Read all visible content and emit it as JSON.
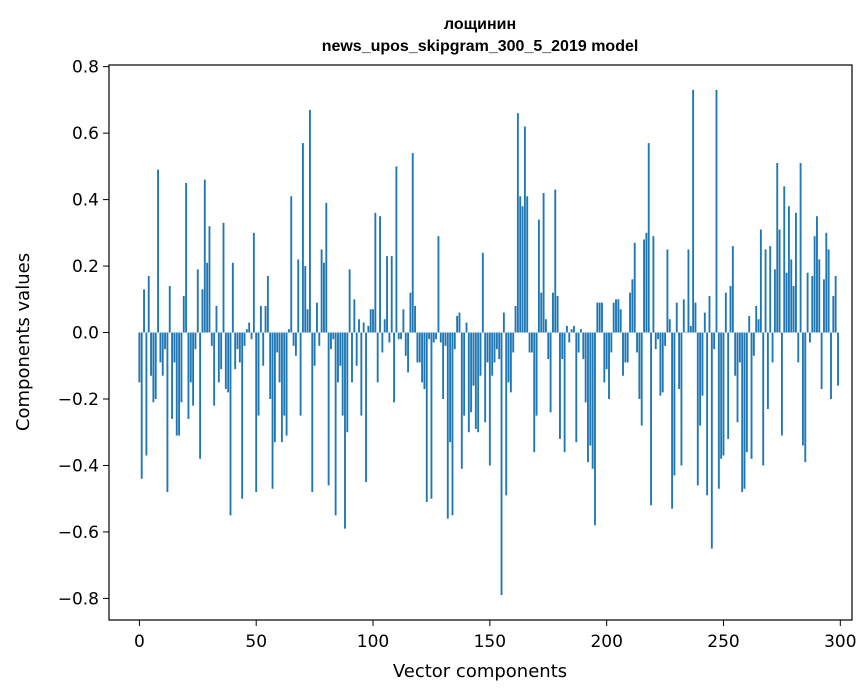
{
  "chart_data": {
    "type": "bar",
    "title_lines": [
      "лощинин",
      "news_upos_skipgram_300_5_2019 model"
    ],
    "xlabel": "Vector components",
    "ylabel": "Components values",
    "xlim": [
      -13,
      305
    ],
    "ylim": [
      -0.865,
      0.805
    ],
    "xticks": [
      0,
      50,
      100,
      150,
      200,
      250,
      300
    ],
    "yticks": [
      -0.8,
      -0.6,
      -0.4,
      -0.2,
      0.0,
      0.2,
      0.4,
      0.6,
      0.8
    ],
    "xtick_labels": [
      "0",
      "50",
      "100",
      "150",
      "200",
      "250",
      "300"
    ],
    "ytick_labels": [
      "−0.8",
      "−0.6",
      "−0.4",
      "−0.2",
      "0.0",
      "0.2",
      "0.4",
      "0.6",
      "0.8"
    ],
    "bar_color": "#1f77b4",
    "grid": false,
    "legend": "none",
    "x_start": 0,
    "values": [
      -0.15,
      -0.44,
      0.13,
      -0.37,
      0.17,
      -0.13,
      -0.21,
      -0.2,
      0.49,
      -0.09,
      -0.13,
      -0.05,
      -0.48,
      0.14,
      -0.26,
      -0.09,
      -0.31,
      -0.31,
      -0.21,
      0.11,
      0.45,
      -0.26,
      -0.15,
      -0.22,
      -0.05,
      0.19,
      -0.38,
      0.13,
      0.46,
      0.21,
      0.32,
      -0.04,
      -0.22,
      0.08,
      -0.15,
      -0.11,
      0.33,
      -0.17,
      -0.18,
      -0.55,
      0.21,
      -0.11,
      -0.05,
      -0.09,
      -0.5,
      -0.04,
      0.01,
      0.03,
      -0.02,
      0.3,
      -0.48,
      -0.25,
      0.08,
      -0.1,
      0.08,
      0.17,
      -0.2,
      -0.47,
      -0.33,
      -0.06,
      -0.15,
      -0.33,
      -0.25,
      -0.31,
      0.01,
      0.41,
      -0.04,
      -0.07,
      0.22,
      -0.25,
      0.57,
      0.2,
      0.07,
      0.67,
      -0.48,
      -0.1,
      0.09,
      -0.04,
      0.25,
      0.21,
      0.39,
      -0.46,
      -0.05,
      -0.02,
      -0.55,
      -0.15,
      -0.1,
      -0.25,
      -0.59,
      -0.3,
      0.19,
      -0.15,
      0.1,
      -0.1,
      0.04,
      -0.25,
      0.03,
      -0.45,
      0.02,
      0.07,
      0.07,
      0.36,
      -0.15,
      0.35,
      -0.06,
      0.04,
      0.23,
      -0.03,
      0.23,
      -0.21,
      0.5,
      -0.02,
      -0.02,
      0.07,
      -0.07,
      -0.12,
      0.12,
      0.54,
      0.08,
      -0.09,
      -0.09,
      -0.15,
      -0.17,
      -0.51,
      -0.02,
      -0.5,
      -0.03,
      -0.02,
      0.29,
      -0.03,
      -0.2,
      -0.04,
      -0.56,
      -0.33,
      -0.55,
      -0.05,
      0.05,
      0.06,
      -0.41,
      -0.25,
      0.03,
      -0.3,
      -0.24,
      -0.16,
      -0.29,
      -0.3,
      -0.13,
      0.24,
      -0.27,
      -0.09,
      -0.4,
      -0.13,
      -0.09,
      -0.05,
      -0.08,
      -0.79,
      0.06,
      -0.49,
      -0.15,
      -0.18,
      -0.06,
      0.08,
      0.66,
      0.41,
      0.38,
      0.62,
      0.41,
      -0.06,
      -0.06,
      -0.36,
      -0.25,
      0.34,
      0.12,
      0.42,
      0.04,
      -0.08,
      -0.24,
      0.12,
      0.43,
      0.11,
      -0.32,
      -0.08,
      -0.36,
      0.02,
      -0.03,
      0.01,
      0.02,
      -0.33,
      -0.06,
      0.01,
      -0.08,
      -0.21,
      -0.39,
      -0.34,
      -0.41,
      -0.58,
      0.09,
      0.09,
      0.09,
      -0.15,
      -0.11,
      -0.2,
      -0.06,
      0.09,
      0.1,
      0.1,
      0.07,
      -0.13,
      -0.09,
      -0.09,
      0.12,
      0.16,
      0.27,
      -0.06,
      -0.2,
      -0.28,
      0.28,
      0.3,
      0.57,
      -0.52,
      0.29,
      -0.05,
      -0.02,
      -0.19,
      -0.18,
      -0.04,
      0.25,
      0.04,
      -0.53,
      -0.43,
      0.09,
      -0.17,
      -0.4,
      0.1,
      0.0,
      0.25,
      0.02,
      0.73,
      0.09,
      -0.46,
      -0.28,
      -0.19,
      0.06,
      -0.49,
      0.11,
      -0.65,
      -0.05,
      0.73,
      -0.47,
      -0.38,
      -0.37,
      0.12,
      -0.32,
      0.14,
      0.26,
      -0.13,
      -0.27,
      -0.09,
      -0.48,
      -0.47,
      -0.36,
      0.05,
      -0.38,
      -0.07,
      0.08,
      0.04,
      0.31,
      -0.4,
      0.25,
      -0.23,
      0.26,
      -0.09,
      0.19,
      0.51,
      0.31,
      -0.31,
      0.44,
      0.18,
      0.38,
      0.22,
      0.14,
      0.36,
      -0.09,
      0.51,
      -0.34,
      -0.39,
      0.18,
      -0.03,
      0.17,
      0.29,
      0.35,
      0.22,
      -0.17,
      0.16,
      0.3,
      0.25,
      -0.2,
      0.11,
      0.17,
      -0.16
    ]
  }
}
